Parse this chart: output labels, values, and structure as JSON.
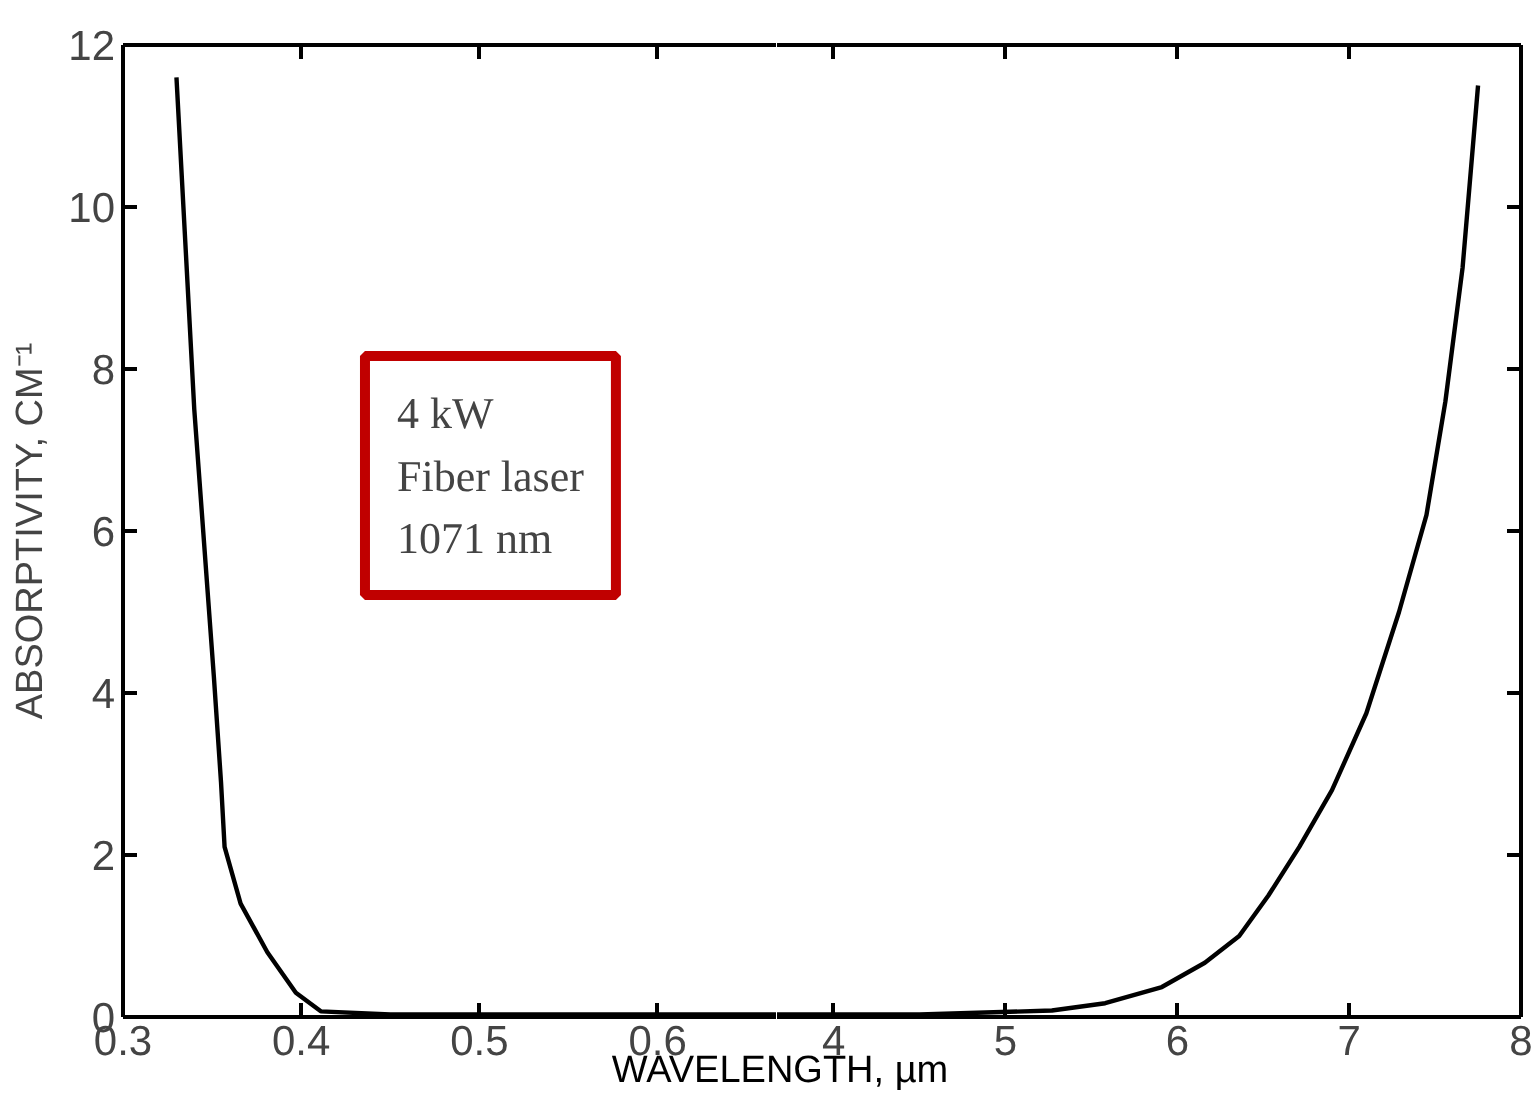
{
  "chart_data": [
    {
      "type": "line",
      "ylabel": "ABSORPTIVITY, CM⁻¹",
      "xlabel": "WAVELENGTH, µm",
      "xlim": [
        0.3,
        0.667
      ],
      "xticks": [
        0.3,
        0.4,
        0.5,
        0.6
      ],
      "ylim": [
        0,
        12
      ],
      "yticks": [
        0,
        2,
        4,
        6,
        8,
        10,
        12
      ],
      "grid": false,
      "series": [
        {
          "color": "#000000",
          "x": [
            0.33,
            0.34,
            0.351,
            0.355,
            0.357,
            0.366,
            0.381,
            0.397,
            0.411,
            0.45,
            0.55,
            0.667
          ],
          "values": [
            11.6,
            7.5,
            4.2,
            2.9,
            2.1,
            1.4,
            0.8,
            0.3,
            0.07,
            0.03,
            0.03,
            0.03
          ]
        }
      ],
      "annotations": [
        "4 kW\nFiber laser\n1071 nm"
      ]
    },
    {
      "type": "line",
      "xlim": [
        3.67,
        8
      ],
      "xticks": [
        4,
        5,
        6,
        7,
        8
      ],
      "ylim": [
        0,
        12
      ],
      "yticks": [
        0,
        2,
        4,
        6,
        8,
        10,
        12
      ],
      "tick_labels": "x",
      "grid": false,
      "series": [
        {
          "color": "#000000",
          "x": [
            3.67,
            4.5,
            5.27,
            5.58,
            5.91,
            6.16,
            6.36,
            6.53,
            6.71,
            6.9,
            7.1,
            7.29,
            7.45,
            7.56,
            7.66,
            7.75
          ],
          "values": [
            0.03,
            0.03,
            0.08,
            0.17,
            0.37,
            0.67,
            1.0,
            1.5,
            2.1,
            2.8,
            3.75,
            5.0,
            6.2,
            7.6,
            9.25,
            11.5
          ]
        }
      ]
    }
  ]
}
